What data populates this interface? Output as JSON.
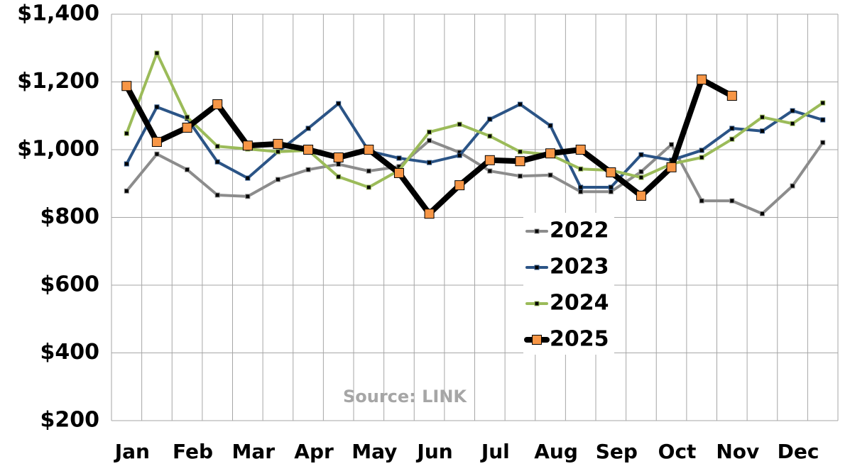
{
  "chart_data": {
    "type": "line",
    "categories": [
      "Jan",
      null,
      "Feb",
      null,
      "Mar",
      null,
      "Apr",
      null,
      "May",
      null,
      "Jun",
      null,
      "Jul",
      null,
      "Aug",
      null,
      "Sep",
      null,
      "Oct",
      null,
      "Nov",
      null,
      "Dec",
      null
    ],
    "series": [
      {
        "name": "2022",
        "color": "#8c8c8c",
        "values": [
          878,
          987,
          941,
          866,
          862,
          912,
          941,
          957,
          937,
          950,
          1027,
          992,
          937,
          922,
          925,
          876,
          876,
          935,
          1015,
          849,
          849,
          811,
          893,
          1021
        ]
      },
      {
        "name": "2023",
        "color": "#2b5486",
        "values": [
          958,
          1126,
          1092,
          964,
          916,
          994,
          1063,
          1136,
          996,
          975,
          962,
          983,
          1090,
          1134,
          1071,
          889,
          889,
          985,
          969,
          998,
          1063,
          1055,
          1115,
          1088
        ]
      },
      {
        "name": "2024",
        "color": "#9bbb59",
        "values": [
          1048,
          1285,
          1096,
          1010,
          1002,
          994,
          998,
          920,
          889,
          939,
          1052,
          1075,
          1040,
          994,
          985,
          943,
          939,
          918,
          958,
          977,
          1031,
          1096,
          1077,
          1138
        ]
      },
      {
        "name": "2025",
        "color": "#000000",
        "marker_color": "#f79646",
        "values": [
          1188,
          1023,
          1065,
          1134,
          1012,
          1017,
          1000,
          977,
          1000,
          931,
          811,
          895,
          969,
          966,
          989,
          1000,
          933,
          864,
          948,
          1207,
          1159,
          null,
          null,
          null
        ]
      }
    ],
    "ylim": [
      200,
      1400
    ],
    "yticks": [
      {
        "value": 200,
        "label": "$200"
      },
      {
        "value": 400,
        "label": "$400"
      },
      {
        "value": 600,
        "label": "$600"
      },
      {
        "value": 800,
        "label": "$800"
      },
      {
        "value": 1000,
        "label": "$1,000"
      },
      {
        "value": 1200,
        "label": "$1,200"
      },
      {
        "value": 1400,
        "label": "$1,400"
      }
    ],
    "grid": true,
    "annotation": "Source: LINK"
  }
}
